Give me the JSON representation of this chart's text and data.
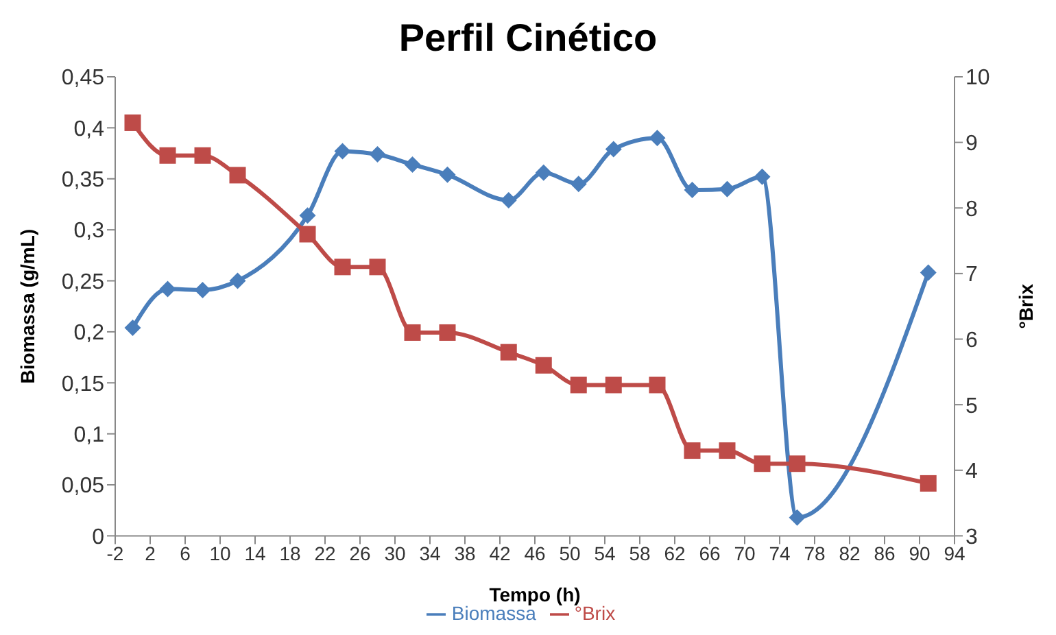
{
  "chart_data": {
    "type": "line",
    "title": "Perfil Cinético",
    "xlabel": "Tempo (h)",
    "ylabel": "Biomassa (g/mL)",
    "y2label": "°Brix",
    "x": [
      0,
      4,
      8,
      12,
      20,
      24,
      28,
      32,
      36,
      43,
      47,
      51,
      55,
      60,
      64,
      68,
      72,
      76,
      91
    ],
    "series": [
      {
        "name": "Biomassa",
        "color": "#4a7ebb",
        "marker": "diamond",
        "values": [
          0.204,
          0.242,
          0.241,
          0.25,
          0.314,
          0.377,
          0.374,
          0.364,
          0.354,
          0.329,
          0.356,
          0.345,
          0.379,
          0.39,
          0.339,
          0.34,
          0.352,
          0.018,
          0.258
        ]
      },
      {
        "name": "°Brix",
        "color": "#be4b48",
        "marker": "square",
        "axis": "y2",
        "values": [
          9.3,
          8.8,
          8.8,
          8.5,
          7.6,
          7.1,
          7.1,
          6.1,
          6.1,
          5.8,
          5.6,
          5.3,
          5.3,
          5.3,
          4.3,
          4.3,
          4.1,
          4.1,
          3.8
        ]
      }
    ],
    "xlim": [
      -2,
      94
    ],
    "xticks": [
      -2,
      2,
      6,
      10,
      14,
      18,
      22,
      26,
      30,
      34,
      38,
      42,
      46,
      50,
      54,
      58,
      62,
      66,
      70,
      74,
      78,
      82,
      86,
      90,
      94
    ],
    "ylim": [
      0,
      0.45
    ],
    "yticks": [
      0,
      {
        "value": 0.05,
        "label": "0,05"
      },
      {
        "value": 0.1,
        "label": "0,1"
      },
      {
        "value": 0.15,
        "label": "0,15"
      },
      {
        "value": 0.2,
        "label": "0,2"
      },
      {
        "value": 0.25,
        "label": "0,25"
      },
      {
        "value": 0.3,
        "label": "0,3"
      },
      {
        "value": 0.35,
        "label": "0,35"
      },
      {
        "value": 0.4,
        "label": "0,4"
      },
      {
        "value": 0.45,
        "label": "0,45"
      }
    ],
    "y2lim": [
      3,
      10
    ],
    "y2ticks": [
      3,
      4,
      5,
      6,
      7,
      8,
      9,
      10
    ],
    "grid": false,
    "legend": "bottom"
  }
}
